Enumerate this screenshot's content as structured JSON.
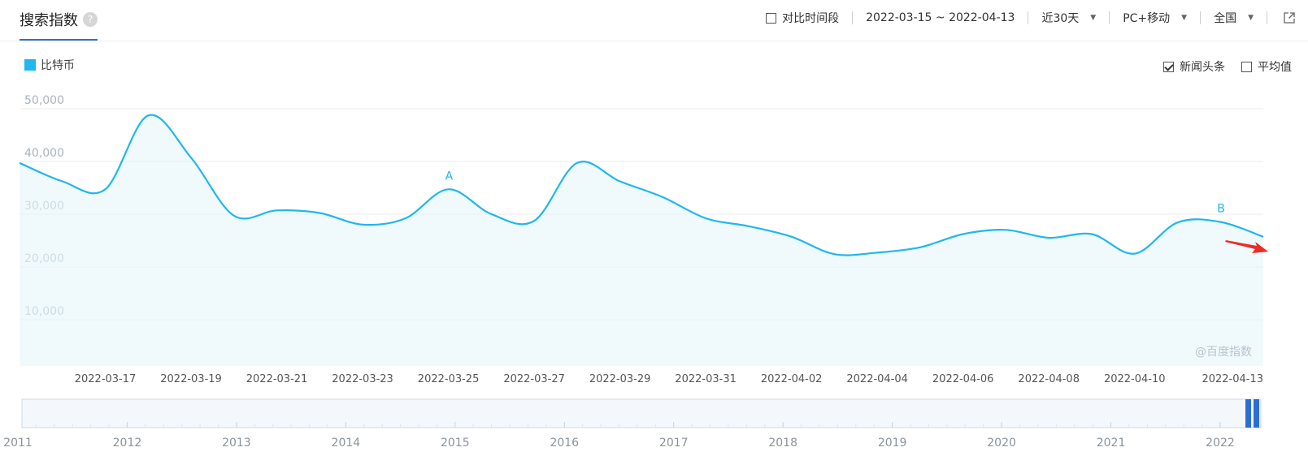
{
  "header": {
    "title": "搜索指数",
    "help_icon": "?",
    "compare_label": "对比时间段",
    "date_range": "2022-03-15 ~ 2022-04-13",
    "period": "近30天",
    "device": "PC+移动",
    "region": "全国"
  },
  "legend": {
    "series_name": "比特币",
    "color": "#1fb7ee"
  },
  "options": {
    "news_label": "新闻头条",
    "news_checked": true,
    "average_label": "平均值",
    "average_checked": false
  },
  "watermark": "@百度指数",
  "chart_data": {
    "type": "area",
    "series": [
      {
        "name": "比特币",
        "x": [
          "2022-03-15",
          "2022-03-16",
          "2022-03-17",
          "2022-03-18",
          "2022-03-19",
          "2022-03-20",
          "2022-03-21",
          "2022-03-22",
          "2022-03-23",
          "2022-03-24",
          "2022-03-25",
          "2022-03-26",
          "2022-03-27",
          "2022-03-28",
          "2022-03-29",
          "2022-03-30",
          "2022-03-31",
          "2022-04-01",
          "2022-04-02",
          "2022-04-03",
          "2022-04-04",
          "2022-04-05",
          "2022-04-06",
          "2022-04-07",
          "2022-04-08",
          "2022-04-09",
          "2022-04-10",
          "2022-04-11",
          "2022-04-12",
          "2022-04-13"
        ],
        "values": [
          38500,
          35000,
          33500,
          47500,
          39500,
          28500,
          29500,
          29000,
          26800,
          28000,
          33500,
          28800,
          27500,
          38500,
          35000,
          32000,
          28000,
          26500,
          24500,
          21200,
          21500,
          22500,
          25000,
          25800,
          24300,
          25000,
          21300,
          27200,
          27300,
          24500
        ]
      }
    ],
    "yticks": [
      "10,000",
      "20,000",
      "30,000",
      "40,000",
      "50,000"
    ],
    "ylim": [
      0,
      50000
    ],
    "xticks": [
      "2022-03-17",
      "2022-03-19",
      "2022-03-21",
      "2022-03-23",
      "2022-03-25",
      "2022-03-27",
      "2022-03-29",
      "2022-03-31",
      "2022-04-02",
      "2022-04-04",
      "2022-04-06",
      "2022-04-08",
      "2022-04-10",
      "2022-04-13"
    ],
    "annotations": [
      {
        "label": "A",
        "date": "2022-03-25"
      },
      {
        "label": "B",
        "date": "2022-04-12"
      }
    ]
  },
  "range_selector": {
    "year_labels": [
      "2011",
      "2012",
      "2013",
      "2014",
      "2015",
      "2016",
      "2017",
      "2018",
      "2019",
      "2020",
      "2021",
      "2022"
    ]
  }
}
